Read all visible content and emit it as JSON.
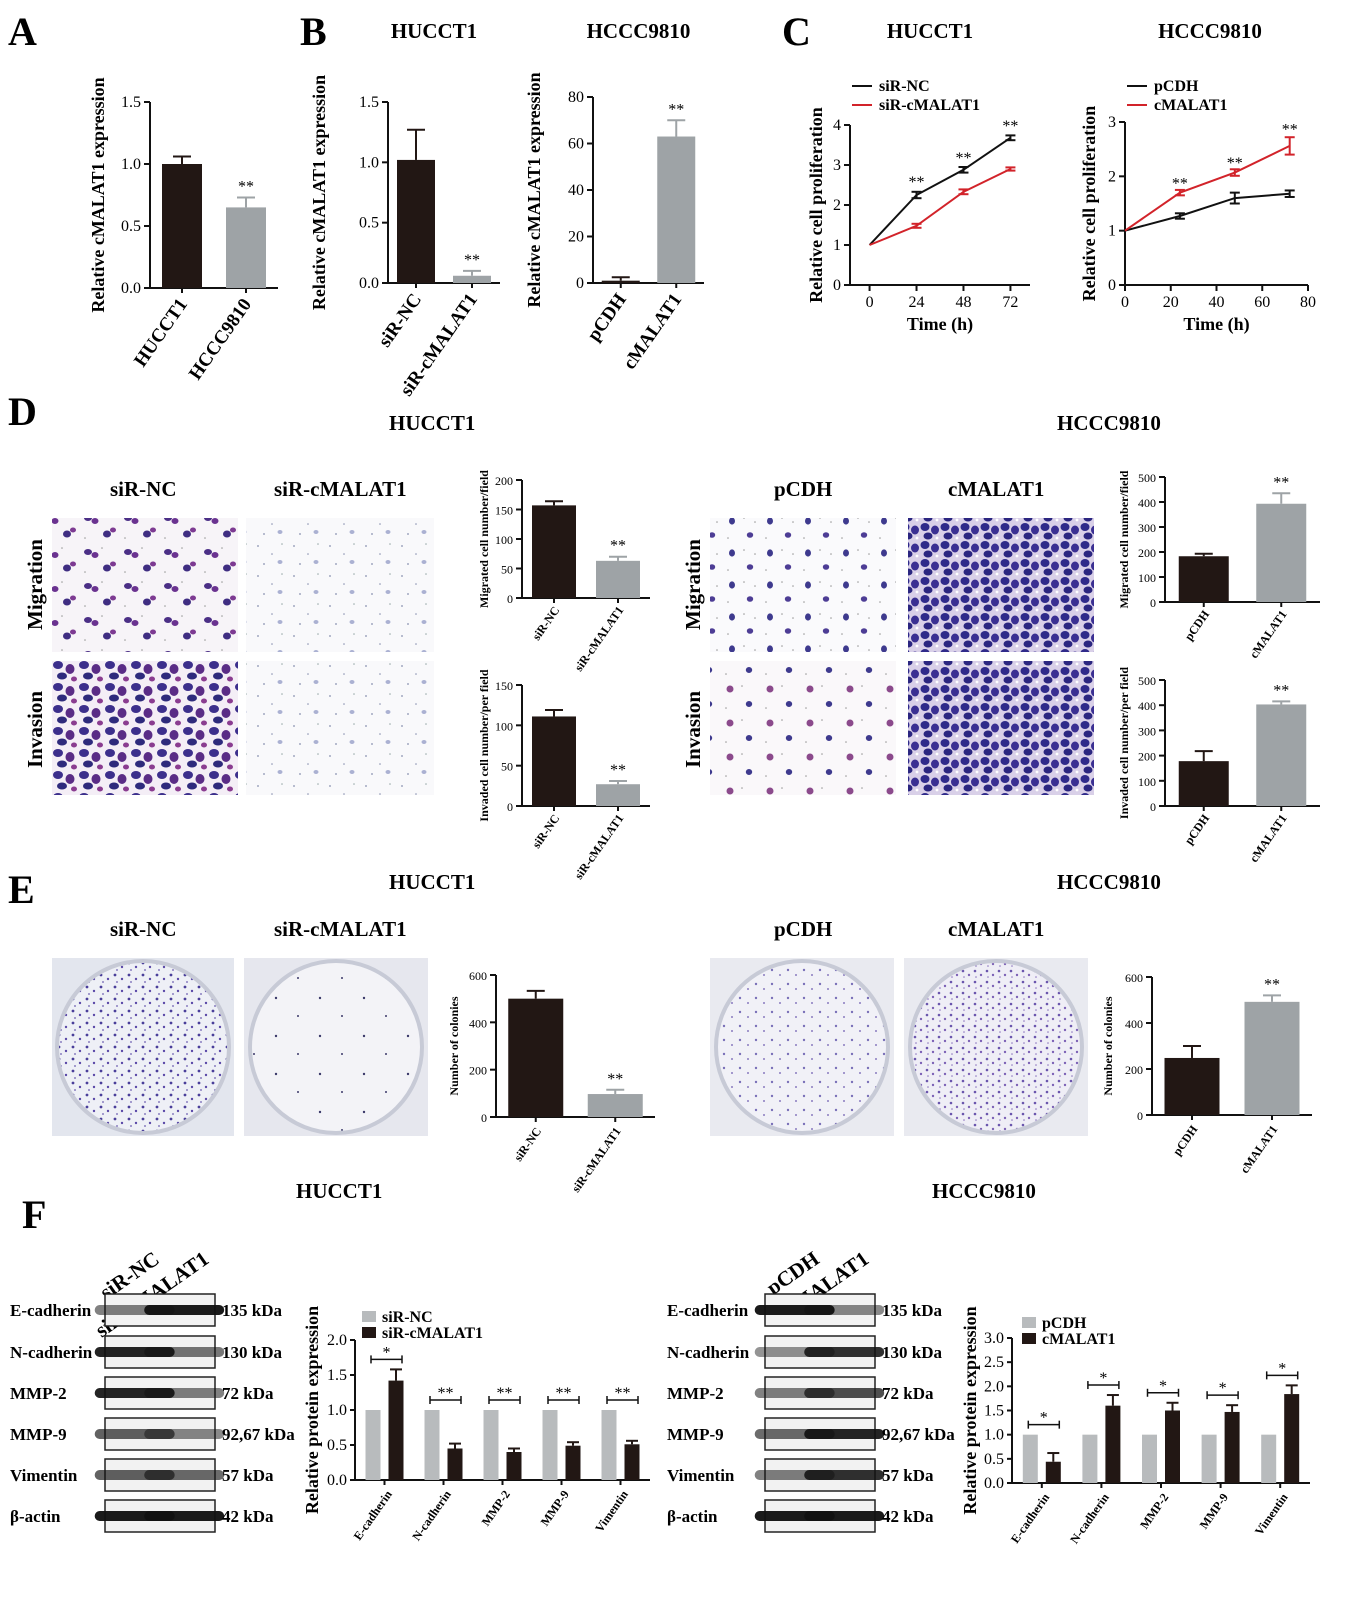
{
  "panels": [
    "A",
    "B",
    "C",
    "D",
    "E",
    "F"
  ],
  "cells": {
    "hucct1": "HUCCT1",
    "hccc9810": "HCCC9810"
  },
  "images": {
    "sirnc": "siR-NC",
    "sicm": "siR-cMALAT1",
    "pcdh": "pCDH",
    "cmalat": "cMALAT1",
    "migration": "Migration",
    "invasion": "Invasion"
  },
  "chart_data": [
    {
      "id": "A",
      "type": "bar",
      "ylabel": "Relative cMALAT1 expression",
      "categories": [
        "HUCCT1",
        "HCCC9810"
      ],
      "values": [
        1.0,
        0.65
      ],
      "errors": [
        0.06,
        0.08
      ],
      "ylim": [
        0,
        1.5
      ],
      "yticks": [
        "0.0",
        "0.5",
        "1.0",
        "1.5"
      ],
      "sig": [
        "",
        "**"
      ],
      "colors": [
        "#221714",
        "#9ea3a6"
      ]
    },
    {
      "id": "B1",
      "type": "bar",
      "title": "HUCCT1",
      "ylabel": "Relative cMALAT1 expression",
      "categories": [
        "siR-NC",
        "siR-cMALAT1"
      ],
      "values": [
        1.02,
        0.06
      ],
      "errors": [
        0.25,
        0.04
      ],
      "ylim": [
        0,
        1.5
      ],
      "yticks": [
        "0.0",
        "0.5",
        "1.0",
        "1.5"
      ],
      "sig": [
        "",
        "**"
      ],
      "colors": [
        "#221714",
        "#9ea3a6"
      ]
    },
    {
      "id": "B2",
      "type": "bar",
      "title": "HCCC9810",
      "ylabel": "Relative cMALAT1 expression",
      "categories": [
        "pCDH",
        "cMALAT1"
      ],
      "values": [
        1,
        63
      ],
      "errors": [
        1.5,
        7
      ],
      "ylim": [
        0,
        80
      ],
      "yticks": [
        "0",
        "20",
        "40",
        "60",
        "80"
      ],
      "sig": [
        "",
        "**"
      ],
      "colors": [
        "#221714",
        "#9ea3a6"
      ]
    },
    {
      "id": "C1",
      "type": "line",
      "title": "HUCCT1",
      "xlabel": "Time (h)",
      "ylabel": "Relative cell proliferation",
      "xticks": [
        "0",
        "24",
        "48",
        "72"
      ],
      "yticks": [
        "0",
        "1",
        "2",
        "3",
        "4"
      ],
      "xlim": [
        -10,
        82
      ],
      "ylim": [
        0,
        4
      ],
      "series": [
        {
          "name": "siR-NC",
          "color": "#111111",
          "x": [
            0,
            24,
            48,
            72
          ],
          "y": [
            1,
            2.25,
            2.88,
            3.68
          ],
          "err": [
            0,
            0.08,
            0.07,
            0.06
          ]
        },
        {
          "name": "siR-cMALAT1",
          "color": "#d2232a",
          "x": [
            0,
            24,
            48,
            72
          ],
          "y": [
            1,
            1.48,
            2.33,
            2.9
          ],
          "err": [
            0,
            0.05,
            0.06,
            0.04
          ]
        }
      ],
      "sig_x": [
        24,
        48,
        72
      ],
      "sig_y": [
        2.45,
        3.05,
        3.85
      ],
      "sig": "**"
    },
    {
      "id": "C2",
      "type": "line",
      "title": "HCCC9810",
      "xlabel": "Time (h)",
      "ylabel": "Relative cell proliferation",
      "xticks": [
        "0",
        "20",
        "40",
        "60",
        "80"
      ],
      "yticks": [
        "0",
        "1",
        "2",
        "3"
      ],
      "xlim": [
        0,
        80
      ],
      "ylim": [
        0,
        3
      ],
      "series": [
        {
          "name": "pCDH",
          "color": "#111111",
          "x": [
            0,
            24,
            48,
            72
          ],
          "y": [
            1,
            1.27,
            1.6,
            1.68
          ],
          "err": [
            0,
            0.05,
            0.1,
            0.06
          ]
        },
        {
          "name": "cMALAT1",
          "color": "#d2232a",
          "x": [
            0,
            24,
            48,
            72
          ],
          "y": [
            1,
            1.7,
            2.07,
            2.56
          ],
          "err": [
            0,
            0.05,
            0.06,
            0.16
          ]
        }
      ],
      "sig_x": [
        24,
        48,
        72
      ],
      "sig_y": [
        1.78,
        2.15,
        2.77
      ],
      "sig": "**"
    },
    {
      "id": "D1",
      "type": "bar",
      "ylabel": "Migrated cell number/field",
      "categories": [
        "siR-NC",
        "siR-cMALAT1"
      ],
      "values": [
        157,
        63
      ],
      "errors": [
        7,
        7
      ],
      "ylim": [
        0,
        200
      ],
      "yticks": [
        "0",
        "50",
        "100",
        "150",
        "200"
      ],
      "sig": [
        "",
        "**"
      ],
      "colors": [
        "#221714",
        "#9ea3a6"
      ]
    },
    {
      "id": "D2",
      "type": "bar",
      "ylabel": "Invaded cell number/per field",
      "categories": [
        "siR-NC",
        "siR-cMALAT1"
      ],
      "values": [
        111,
        27
      ],
      "errors": [
        8,
        4
      ],
      "ylim": [
        0,
        150
      ],
      "yticks": [
        "0",
        "50",
        "100",
        "150"
      ],
      "sig": [
        "",
        "**"
      ],
      "colors": [
        "#221714",
        "#9ea3a6"
      ]
    },
    {
      "id": "D3",
      "type": "bar",
      "ylabel": "Migrated cell number/field",
      "categories": [
        "pCDH",
        "cMALAT1"
      ],
      "values": [
        183,
        393
      ],
      "errors": [
        10,
        42
      ],
      "ylim": [
        0,
        500
      ],
      "yticks": [
        "0",
        "100",
        "200",
        "300",
        "400",
        "500"
      ],
      "sig": [
        "",
        "**"
      ],
      "colors": [
        "#221714",
        "#9ea3a6"
      ]
    },
    {
      "id": "D4",
      "type": "bar",
      "ylabel": "Invaded cell number/per field",
      "categories": [
        "pCDH",
        "cMALAT1"
      ],
      "values": [
        178,
        403
      ],
      "errors": [
        40,
        12
      ],
      "ylim": [
        0,
        500
      ],
      "yticks": [
        "0",
        "100",
        "200",
        "300",
        "400",
        "500"
      ],
      "sig": [
        "",
        "**"
      ],
      "colors": [
        "#221714",
        "#9ea3a6"
      ]
    },
    {
      "id": "E1",
      "type": "bar",
      "ylabel": "Number of colonies",
      "categories": [
        "siR-NC",
        "siR-cMALAT1"
      ],
      "values": [
        500,
        97
      ],
      "errors": [
        33,
        18
      ],
      "ylim": [
        0,
        600
      ],
      "yticks": [
        "0",
        "200",
        "400",
        "600"
      ],
      "sig": [
        "",
        "**"
      ],
      "colors": [
        "#221714",
        "#9ea3a6"
      ]
    },
    {
      "id": "E2",
      "type": "bar",
      "ylabel": "Number of colonies",
      "categories": [
        "pCDH",
        "cMALAT1"
      ],
      "values": [
        248,
        492
      ],
      "errors": [
        52,
        28
      ],
      "ylim": [
        0,
        600
      ],
      "yticks": [
        "0",
        "200",
        "400",
        "600"
      ],
      "sig": [
        "",
        "**"
      ],
      "colors": [
        "#221714",
        "#9ea3a6"
      ]
    },
    {
      "id": "F1",
      "type": "bar",
      "ylabel": "Relative  protein expression",
      "categories": [
        "E-cadherin",
        "N-cadherin",
        "MMP-2",
        "MMP-9",
        "Vimentin"
      ],
      "ylim": [
        0,
        2.0
      ],
      "yticks": [
        "0.0",
        "0.5",
        "1.0",
        "1.5",
        "2.0"
      ],
      "series": [
        {
          "name": "siR-NC",
          "color": "#b8bbbd",
          "values": [
            1,
            1,
            1,
            1,
            1
          ],
          "errors": [
            0,
            0,
            0,
            0,
            0
          ]
        },
        {
          "name": "siR-cMALAT1",
          "color": "#221714",
          "values": [
            1.42,
            0.45,
            0.4,
            0.49,
            0.51
          ],
          "errors": [
            0.16,
            0.07,
            0.05,
            0.05,
            0.05
          ]
        }
      ],
      "sig": [
        "*",
        "**",
        "**",
        "**",
        "**"
      ]
    },
    {
      "id": "F2",
      "type": "bar",
      "ylabel": "Relative  protein expression",
      "categories": [
        "E-cadherin",
        "N-cadherin",
        "MMP-2",
        "MMP-9",
        "Vimentin"
      ],
      "ylim": [
        0,
        3.0
      ],
      "yticks": [
        "0.0",
        "0.5",
        "1.0",
        "1.5",
        "2.0",
        "2.5",
        "3.0"
      ],
      "series": [
        {
          "name": "pCDH",
          "color": "#b8bbbd",
          "values": [
            1,
            1,
            1,
            1,
            1
          ],
          "errors": [
            0,
            0,
            0,
            0,
            0
          ]
        },
        {
          "name": "cMALAT1",
          "color": "#221714",
          "values": [
            0.44,
            1.6,
            1.5,
            1.47,
            1.84
          ],
          "errors": [
            0.18,
            0.22,
            0.16,
            0.14,
            0.18
          ]
        }
      ],
      "sig": [
        "*",
        "*",
        "*",
        "*",
        "*"
      ]
    }
  ],
  "blots": {
    "left_lanes": [
      "siR-NC",
      "siR-cMALAT1"
    ],
    "right_lanes": [
      "pCDH",
      "cMALAT1"
    ],
    "proteins": [
      "E-cadherin",
      "N-cadherin",
      "MMP-2",
      "MMP-9",
      "Vimentin",
      "β-actin"
    ],
    "kda": [
      "135 kDa",
      "130 kDa",
      "72 kDa",
      "92,67 kDa",
      "57 kDa",
      "42 kDa"
    ],
    "left_intensity": [
      [
        0.45,
        0.95
      ],
      [
        0.9,
        0.5
      ],
      [
        0.9,
        0.45
      ],
      [
        0.6,
        0.4
      ],
      [
        0.6,
        0.55
      ],
      [
        0.95,
        0.95
      ]
    ],
    "right_intensity": [
      [
        0.95,
        0.4
      ],
      [
        0.35,
        0.85
      ],
      [
        0.45,
        0.7
      ],
      [
        0.55,
        0.9
      ],
      [
        0.45,
        0.85
      ],
      [
        0.95,
        0.95
      ]
    ]
  }
}
